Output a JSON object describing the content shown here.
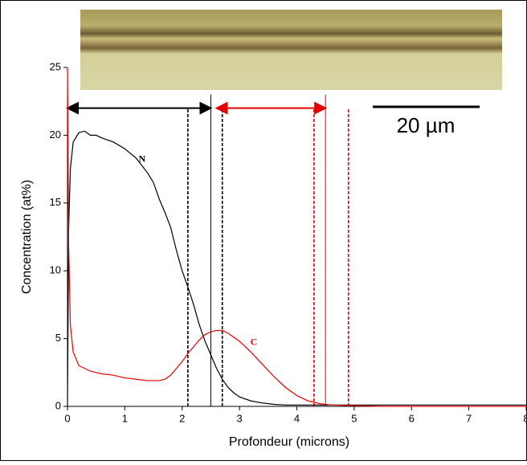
{
  "chart_data": {
    "type": "line",
    "xlabel": "Profondeur (microns)",
    "ylabel": "Concentration (at%)",
    "x": [
      0,
      0.02,
      0.05,
      0.1,
      0.2,
      0.3,
      0.4,
      0.5,
      0.6,
      0.8,
      1.0,
      1.2,
      1.4,
      1.5,
      1.6,
      1.7,
      1.8,
      1.9,
      2.0,
      2.1,
      2.2,
      2.3,
      2.4,
      2.5,
      2.6,
      2.7,
      2.8,
      2.9,
      3.0,
      3.2,
      3.4,
      3.6,
      3.8,
      4.0,
      4.2,
      4.4,
      4.6,
      5.0,
      5.5,
      6.0,
      7.0,
      8.0
    ],
    "series": [
      {
        "name": "N",
        "color": "#000000",
        "label_at": [
          1.3,
          18.2
        ],
        "values": [
          0,
          13,
          17.5,
          19.5,
          20.2,
          20.3,
          20,
          20,
          19.8,
          19.5,
          19,
          18.3,
          17.2,
          16.5,
          15.3,
          14.3,
          13.2,
          11.5,
          10,
          8.8,
          7.5,
          6,
          4.8,
          3.8,
          2.8,
          2,
          1.4,
          1,
          0.7,
          0.4,
          0.25,
          0.15,
          0.1,
          0.1,
          0.1,
          0.1,
          0.1,
          0.1,
          0.1,
          0.1,
          0.1,
          0.1
        ]
      },
      {
        "name": "C",
        "color": "#e00000",
        "label_at": [
          3.25,
          4.7
        ],
        "values": [
          25,
          12,
          6,
          4,
          3,
          2.8,
          2.6,
          2.5,
          2.4,
          2.3,
          2.1,
          2,
          1.9,
          1.9,
          1.9,
          2,
          2.3,
          2.8,
          3.3,
          3.9,
          4.4,
          4.9,
          5.3,
          5.5,
          5.6,
          5.6,
          5.4,
          5.1,
          4.8,
          4,
          3.1,
          2.2,
          1.4,
          0.8,
          0.4,
          0.2,
          0.1,
          0.05,
          0,
          0,
          0,
          0
        ]
      }
    ],
    "xlim": [
      0,
      8
    ],
    "xticks": [
      0,
      1,
      2,
      3,
      4,
      5,
      6,
      7,
      8
    ],
    "ylim": [
      0,
      25
    ],
    "yticks": [
      0,
      5,
      10,
      15,
      20,
      25
    ],
    "reference_lines": [
      {
        "x": 2.1,
        "top": 22,
        "color": "#000000",
        "dash": true
      },
      {
        "x": 2.5,
        "top": 23,
        "color": "#000000",
        "dash": false
      },
      {
        "x": 2.7,
        "top": 22,
        "color": "#000000",
        "dash": true
      },
      {
        "x": 4.3,
        "top": 22,
        "color": "#e00000",
        "dash": true
      },
      {
        "x": 4.5,
        "top": 23,
        "color": "#e00000",
        "dash": false
      },
      {
        "x": 4.9,
        "top": 22,
        "color": "#e00000",
        "dash": true
      }
    ],
    "arrows": [
      {
        "x": [
          0,
          2.5
        ],
        "y": 22,
        "color": "#000000"
      },
      {
        "x": [
          2.6,
          4.5
        ],
        "y": 22,
        "color": "#e00000"
      }
    ],
    "scale_bar": "20 µm"
  }
}
